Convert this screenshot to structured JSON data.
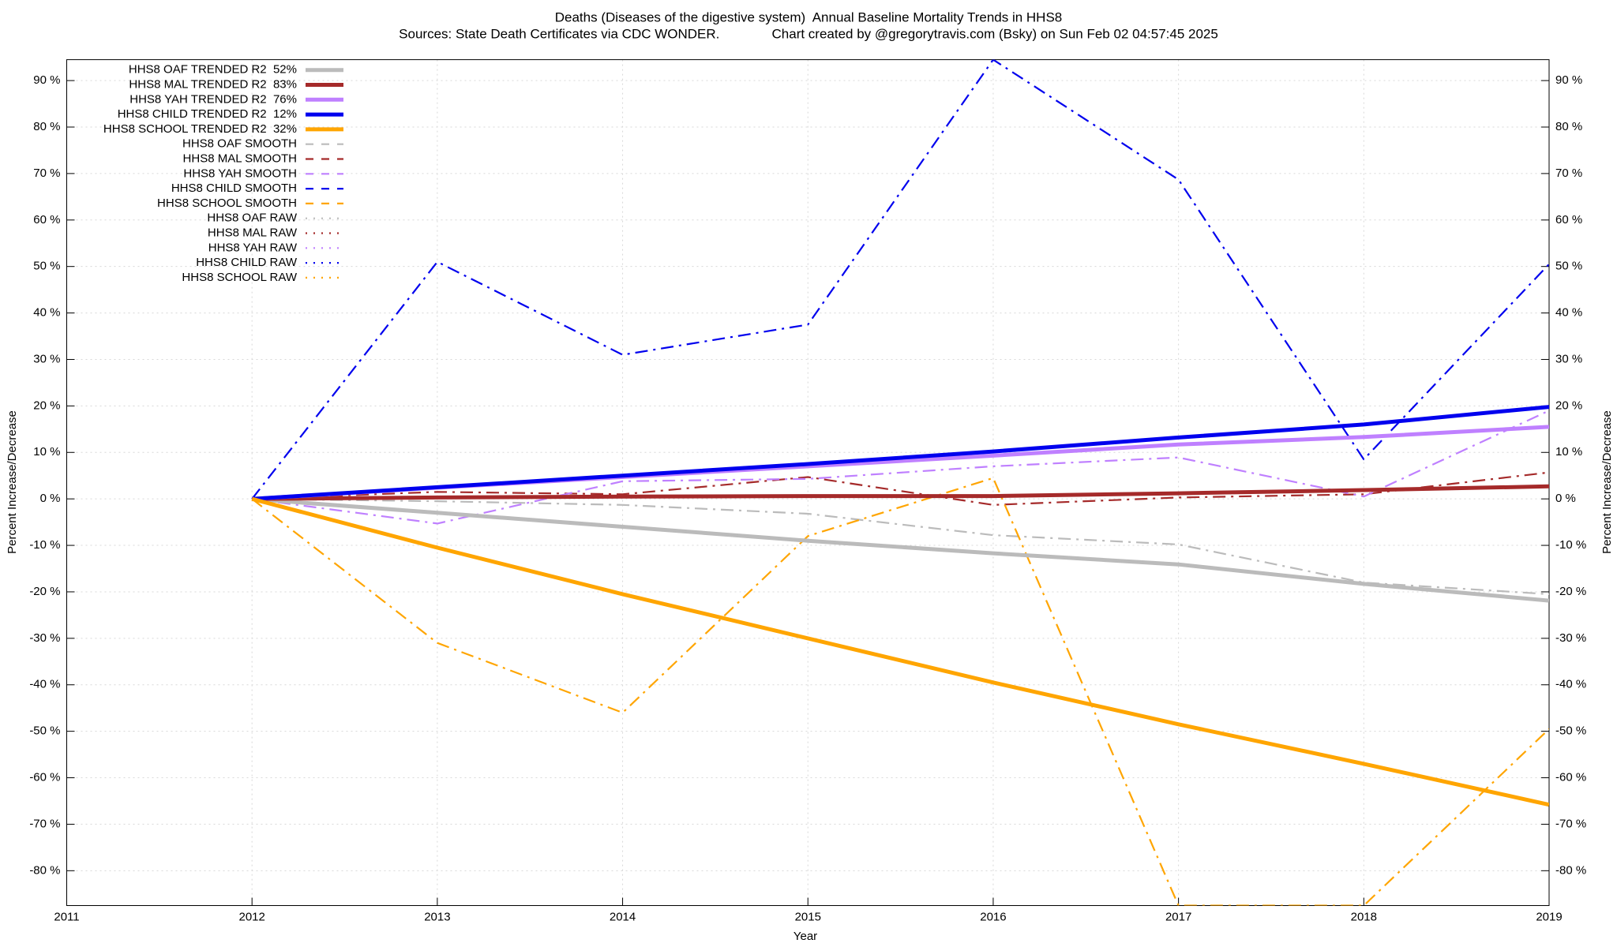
{
  "chart_data": {
    "type": "line",
    "title": "Deaths (Diseases of the digestive system)  Annual Baseline Mortality Trends in HHS8",
    "subtitle": "Sources: State Death Certificates via CDC WONDER.              Chart created by @gregorytravis.com (Bsky) on Sun Feb 02 04:57:45 2025",
    "xlabel": "Year",
    "ylabel": "Percent Increase/Decrease",
    "y2label": "Percent Increase/Decrease",
    "x": [
      2012,
      2013,
      2014,
      2015,
      2016,
      2017,
      2018,
      2019
    ],
    "xlim": [
      2011,
      2019
    ],
    "xticks": [
      2011,
      2012,
      2013,
      2014,
      2015,
      2016,
      2017,
      2018,
      2019
    ],
    "ylim": [
      -87.5,
      94.5
    ],
    "yticks": [
      {
        "value": -80,
        "label": "-80 %"
      },
      {
        "value": -70,
        "label": "-70 %"
      },
      {
        "value": -60,
        "label": "-60 %"
      },
      {
        "value": -50,
        "label": "-50 %"
      },
      {
        "value": -40,
        "label": "-40 %"
      },
      {
        "value": -30,
        "label": "-30 %"
      },
      {
        "value": -20,
        "label": "-20 %"
      },
      {
        "value": -10,
        "label": "-10 %"
      },
      {
        "value": 0,
        "label": "0 %"
      },
      {
        "value": 10,
        "label": "10 %"
      },
      {
        "value": 20,
        "label": "20 %"
      },
      {
        "value": 30,
        "label": "30 %"
      },
      {
        "value": 40,
        "label": "40 %"
      },
      {
        "value": 50,
        "label": "50 %"
      },
      {
        "value": 60,
        "label": "60 %"
      },
      {
        "value": 70,
        "label": "70 %"
      },
      {
        "value": 80,
        "label": "80 %"
      },
      {
        "value": 90,
        "label": "90 %"
      }
    ],
    "y2lim": [
      -87.5,
      94.5
    ],
    "y2ticks": [
      {
        "value": -80,
        "label": "-80 %"
      },
      {
        "value": -70,
        "label": "-70 %"
      },
      {
        "value": -60,
        "label": "-60 %"
      },
      {
        "value": -50,
        "label": "-50 %"
      },
      {
        "value": -40,
        "label": "-40 %"
      },
      {
        "value": -30,
        "label": "-30 %"
      },
      {
        "value": -20,
        "label": "-20 %"
      },
      {
        "value": -10,
        "label": "-10 %"
      },
      {
        "value": 0,
        "label": "0 %"
      },
      {
        "value": 10,
        "label": "10 %"
      },
      {
        "value": 20,
        "label": "20 %"
      },
      {
        "value": 30,
        "label": "30 %"
      },
      {
        "value": 40,
        "label": "40 %"
      },
      {
        "value": 50,
        "label": "50 %"
      },
      {
        "value": 60,
        "label": "60 %"
      },
      {
        "value": 70,
        "label": "70 %"
      },
      {
        "value": 80,
        "label": "80 %"
      },
      {
        "value": 90,
        "label": "90 %"
      }
    ],
    "grid": true,
    "legend": "top-left",
    "series": [
      {
        "name": "HHS8 OAF TRENDED R2  52%",
        "color": "#bbbbbb",
        "dash": "solid",
        "values": [
          0,
          -3,
          -6,
          -9,
          -11.7,
          -14.1,
          -18.3,
          -21.9
        ]
      },
      {
        "name": "HHS8 MAL TRENDED R2  83%",
        "color": "#a52a2a",
        "dash": "solid",
        "values": [
          0,
          0.3,
          0.5,
          0.6,
          0.6,
          1.2,
          1.9,
          2.7
        ]
      },
      {
        "name": "HHS8 YAH TRENDED R2  76%",
        "color": "#bf80ff",
        "dash": "solid",
        "values": [
          0,
          2.4,
          4.7,
          7,
          9.3,
          11.7,
          13.3,
          15.5
        ]
      },
      {
        "name": "HHS8 CHILD TRENDED R2  12%",
        "color": "#0000ee",
        "dash": "solid",
        "values": [
          0,
          2.5,
          5,
          7.5,
          10.2,
          13.2,
          16,
          19.8
        ]
      },
      {
        "name": "HHS8 SCHOOL TRENDED R2  32%",
        "color": "#ffa500",
        "dash": "solid",
        "values": [
          0,
          -10.5,
          -20.5,
          -30,
          -39.5,
          -48.5,
          -57,
          -65.8
        ]
      },
      {
        "name": "HHS8 OAF SMOOTH",
        "color": "#bbbbbb",
        "dash": "dashed",
        "values": [
          0,
          -0.5,
          -1.3,
          -3.2,
          -7.8,
          -9.8,
          -18,
          -20.5
        ]
      },
      {
        "name": "HHS8 MAL SMOOTH",
        "color": "#a52a2a",
        "dash": "dashed",
        "values": [
          0,
          1.5,
          1,
          4.7,
          -1.3,
          0.3,
          1,
          5.7
        ]
      },
      {
        "name": "HHS8 YAH SMOOTH",
        "color": "#bf80ff",
        "dash": "dashed",
        "values": [
          0,
          -5.3,
          3.8,
          4.3,
          7,
          8.9,
          0.5,
          19
        ]
      },
      {
        "name": "HHS8 CHILD SMOOTH",
        "color": "#0000ee",
        "dash": "dashed",
        "values": [
          0,
          51,
          31,
          37.5,
          94.5,
          68.7,
          8.5,
          50.5
        ]
      },
      {
        "name": "HHS8 SCHOOL SMOOTH",
        "color": "#ffa500",
        "dash": "dashed",
        "values": [
          0,
          -31,
          -46,
          -8,
          4.5,
          -87.5,
          -87.5,
          -49.5
        ]
      },
      {
        "name": "HHS8 OAF RAW",
        "color": "#bbbbbb",
        "dash": "dotted"
      },
      {
        "name": "HHS8 MAL RAW",
        "color": "#a52a2a",
        "dash": "dotted"
      },
      {
        "name": "HHS8 YAH RAW",
        "color": "#bf80ff",
        "dash": "dotted"
      },
      {
        "name": "HHS8 CHILD RAW",
        "color": "#0000ee",
        "dash": "dotted"
      },
      {
        "name": "HHS8 SCHOOL RAW",
        "color": "#ffa500",
        "dash": "dotted"
      }
    ]
  }
}
